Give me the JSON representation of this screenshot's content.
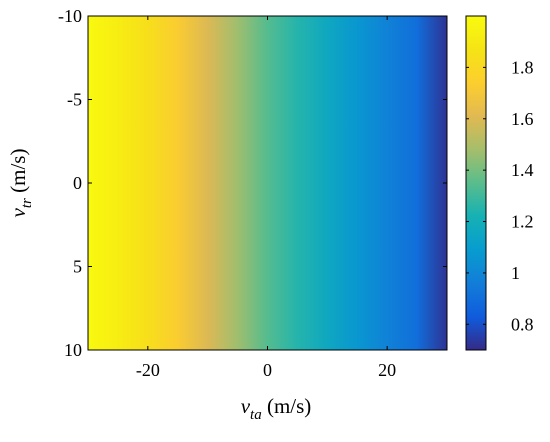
{
  "chart_data": {
    "type": "heatmap",
    "title": "",
    "xlabel": {
      "symbol": "v",
      "subscript": "ta",
      "unit": " (m/s)"
    },
    "ylabel": {
      "symbol": "v",
      "subscript": "tr",
      "unit": " (m/s)"
    },
    "xlim": [
      -30,
      30
    ],
    "ylim": [
      -10,
      10
    ],
    "y_reversed": true,
    "x_ticks": [
      -20,
      0,
      20
    ],
    "x_tick_labels": [
      "-20",
      "0",
      "20"
    ],
    "y_ticks": [
      -10,
      -5,
      0,
      5,
      10
    ],
    "y_tick_labels": [
      "-10",
      "-5",
      "0",
      "5",
      "10"
    ],
    "colorbar": {
      "limits": [
        0.7,
        2.0
      ],
      "ticks": [
        0.8,
        1,
        1.2,
        1.4,
        1.6,
        1.8
      ],
      "tick_labels": [
        "0.8",
        "1",
        "1.2",
        "1.4",
        "1.6",
        "1.8"
      ],
      "colormap": "parula"
    },
    "value_varies_along": "x",
    "x": [
      -30,
      -25,
      -20,
      -15,
      -10,
      -5,
      0,
      5,
      10,
      15,
      20,
      25,
      30
    ],
    "values": [
      1.99,
      1.92,
      1.84,
      1.73,
      1.6,
      1.47,
      1.34,
      1.25,
      1.16,
      1.07,
      0.98,
      0.9,
      0.72
    ]
  }
}
